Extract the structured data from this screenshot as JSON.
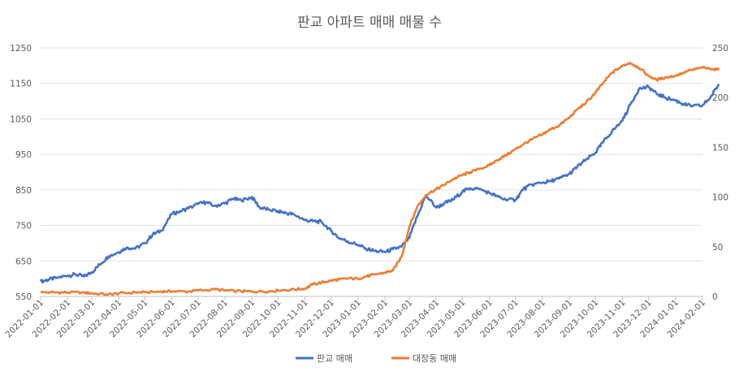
{
  "chart_data": {
    "type": "line",
    "title": "판교 아파트 매매 매물 수",
    "x_type": "date",
    "x_ticks": [
      "2022-01-01",
      "2022-02-01",
      "2022-03-01",
      "2022-04-01",
      "2022-05-01",
      "2022-06-01",
      "2022-07-01",
      "2022-08-01",
      "2022-09-01",
      "2022-10-01",
      "2022-11-01",
      "2022-12-01",
      "2023-01-01",
      "2023-02-01",
      "2023-03-01",
      "2023-04-01",
      "2023-05-01",
      "2023-06-01",
      "2023-07-01",
      "2023-08-01",
      "2023-09-01",
      "2023-10-01",
      "2023-11-01",
      "2023-12-01",
      "2024-01-01",
      "2024-02-01"
    ],
    "y_left": {
      "min": 550,
      "max": 1250,
      "ticks": [
        550,
        650,
        750,
        850,
        950,
        1050,
        1150,
        1250
      ]
    },
    "y_right": {
      "min": 0,
      "max": 250,
      "ticks": [
        0,
        50,
        100,
        150,
        200,
        250
      ]
    },
    "grid": "horizontal",
    "legend_position": "bottom",
    "series": [
      {
        "name": "판교 매매",
        "axis": "left",
        "color": "#4472C4",
        "points": [
          [
            "2022-01-01",
            592
          ],
          [
            "2022-01-10",
            597
          ],
          [
            "2022-01-20",
            603
          ],
          [
            "2022-02-01",
            608
          ],
          [
            "2022-02-10",
            612
          ],
          [
            "2022-02-20",
            606
          ],
          [
            "2022-03-01",
            618
          ],
          [
            "2022-03-10",
            640
          ],
          [
            "2022-03-20",
            663
          ],
          [
            "2022-04-01",
            675
          ],
          [
            "2022-04-10",
            688
          ],
          [
            "2022-04-20",
            685
          ],
          [
            "2022-05-01",
            700
          ],
          [
            "2022-05-10",
            725
          ],
          [
            "2022-05-20",
            735
          ],
          [
            "2022-06-01",
            782
          ],
          [
            "2022-06-10",
            790
          ],
          [
            "2022-06-20",
            798
          ],
          [
            "2022-07-01",
            810
          ],
          [
            "2022-07-10",
            815
          ],
          [
            "2022-07-20",
            805
          ],
          [
            "2022-08-01",
            812
          ],
          [
            "2022-08-10",
            825
          ],
          [
            "2022-08-20",
            820
          ],
          [
            "2022-09-01",
            830
          ],
          [
            "2022-09-10",
            800
          ],
          [
            "2022-09-20",
            795
          ],
          [
            "2022-10-01",
            790
          ],
          [
            "2022-10-10",
            785
          ],
          [
            "2022-10-20",
            780
          ],
          [
            "2022-11-01",
            765
          ],
          [
            "2022-11-10",
            762
          ],
          [
            "2022-11-20",
            760
          ],
          [
            "2022-12-01",
            735
          ],
          [
            "2022-12-10",
            715
          ],
          [
            "2022-12-20",
            705
          ],
          [
            "2023-01-01",
            695
          ],
          [
            "2023-01-10",
            685
          ],
          [
            "2023-01-20",
            678
          ],
          [
            "2023-02-01",
            675
          ],
          [
            "2023-02-10",
            683
          ],
          [
            "2023-02-20",
            690
          ],
          [
            "2023-03-01",
            715
          ],
          [
            "2023-03-10",
            775
          ],
          [
            "2023-03-20",
            835
          ],
          [
            "2023-04-01",
            800
          ],
          [
            "2023-04-10",
            812
          ],
          [
            "2023-04-20",
            822
          ],
          [
            "2023-05-01",
            845
          ],
          [
            "2023-05-10",
            855
          ],
          [
            "2023-05-20",
            852
          ],
          [
            "2023-06-01",
            842
          ],
          [
            "2023-06-10",
            832
          ],
          [
            "2023-06-20",
            822
          ],
          [
            "2023-07-01",
            822
          ],
          [
            "2023-07-10",
            852
          ],
          [
            "2023-07-20",
            865
          ],
          [
            "2023-08-01",
            870
          ],
          [
            "2023-08-10",
            875
          ],
          [
            "2023-08-20",
            882
          ],
          [
            "2023-09-01",
            895
          ],
          [
            "2023-09-10",
            915
          ],
          [
            "2023-09-20",
            935
          ],
          [
            "2023-10-01",
            955
          ],
          [
            "2023-10-10",
            985
          ],
          [
            "2023-10-20",
            1015
          ],
          [
            "2023-11-01",
            1045
          ],
          [
            "2023-11-10",
            1090
          ],
          [
            "2023-11-20",
            1135
          ],
          [
            "2023-12-01",
            1140
          ],
          [
            "2023-12-10",
            1122
          ],
          [
            "2023-12-20",
            1110
          ],
          [
            "2024-01-01",
            1102
          ],
          [
            "2024-01-10",
            1092
          ],
          [
            "2024-01-20",
            1085
          ],
          [
            "2024-02-01",
            1088
          ],
          [
            "2024-02-10",
            1110
          ],
          [
            "2024-02-20",
            1148
          ]
        ]
      },
      {
        "name": "대장동 매매",
        "axis": "right",
        "color": "#ED7D31",
        "points": [
          [
            "2022-01-01",
            4
          ],
          [
            "2022-01-20",
            4
          ],
          [
            "2022-02-01",
            4
          ],
          [
            "2022-02-20",
            4
          ],
          [
            "2022-03-01",
            3
          ],
          [
            "2022-03-20",
            2
          ],
          [
            "2022-04-01",
            3
          ],
          [
            "2022-04-20",
            4
          ],
          [
            "2022-05-01",
            4
          ],
          [
            "2022-05-20",
            5
          ],
          [
            "2022-06-01",
            5
          ],
          [
            "2022-06-20",
            5
          ],
          [
            "2022-07-01",
            6
          ],
          [
            "2022-07-20",
            7
          ],
          [
            "2022-08-01",
            6
          ],
          [
            "2022-08-20",
            5
          ],
          [
            "2022-09-01",
            5
          ],
          [
            "2022-09-20",
            5
          ],
          [
            "2022-10-01",
            6
          ],
          [
            "2022-10-20",
            7
          ],
          [
            "2022-11-01",
            8
          ],
          [
            "2022-11-10",
            12
          ],
          [
            "2022-11-20",
            14
          ],
          [
            "2022-12-01",
            16
          ],
          [
            "2022-12-10",
            17
          ],
          [
            "2022-12-20",
            18
          ],
          [
            "2023-01-01",
            18
          ],
          [
            "2023-01-10",
            20
          ],
          [
            "2023-01-20",
            22
          ],
          [
            "2023-02-01",
            24
          ],
          [
            "2023-02-10",
            26
          ],
          [
            "2023-02-20",
            40
          ],
          [
            "2023-03-01",
            70
          ],
          [
            "2023-03-10",
            90
          ],
          [
            "2023-03-20",
            102
          ],
          [
            "2023-04-01",
            108
          ],
          [
            "2023-04-10",
            112
          ],
          [
            "2023-04-20",
            118
          ],
          [
            "2023-05-01",
            122
          ],
          [
            "2023-05-10",
            125
          ],
          [
            "2023-05-20",
            128
          ],
          [
            "2023-06-01",
            132
          ],
          [
            "2023-06-10",
            137
          ],
          [
            "2023-06-20",
            142
          ],
          [
            "2023-07-01",
            148
          ],
          [
            "2023-07-10",
            153
          ],
          [
            "2023-07-20",
            158
          ],
          [
            "2023-08-01",
            163
          ],
          [
            "2023-08-10",
            168
          ],
          [
            "2023-08-20",
            172
          ],
          [
            "2023-09-01",
            180
          ],
          [
            "2023-09-10",
            188
          ],
          [
            "2023-09-20",
            195
          ],
          [
            "2023-10-01",
            205
          ],
          [
            "2023-10-10",
            215
          ],
          [
            "2023-10-20",
            225
          ],
          [
            "2023-11-01",
            232
          ],
          [
            "2023-11-10",
            235
          ],
          [
            "2023-11-20",
            230
          ],
          [
            "2023-12-01",
            222
          ],
          [
            "2023-12-10",
            218
          ],
          [
            "2023-12-20",
            220
          ],
          [
            "2024-01-01",
            222
          ],
          [
            "2024-01-10",
            225
          ],
          [
            "2024-01-20",
            228
          ],
          [
            "2024-02-01",
            230
          ],
          [
            "2024-02-10",
            229
          ],
          [
            "2024-02-20",
            228
          ]
        ]
      }
    ]
  }
}
